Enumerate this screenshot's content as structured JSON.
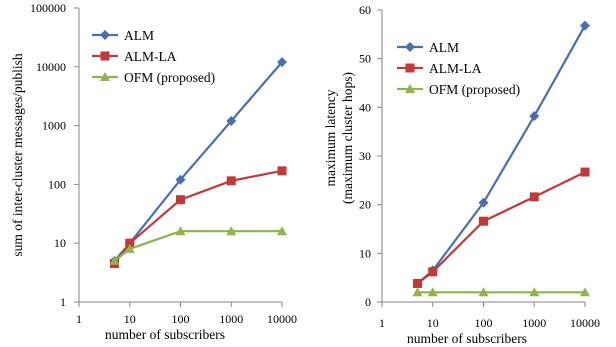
{
  "chart_data": [
    {
      "type": "line",
      "xlabel": "number of subscribers",
      "ylabel": "sum of inter-cluster messages/publish",
      "x_scale": "log",
      "y_scale": "log",
      "xlim": [
        1,
        10000
      ],
      "ylim": [
        1,
        100000
      ],
      "x_ticks": [
        "1",
        "10",
        "100",
        "1000",
        "10000"
      ],
      "y_ticks": [
        "1",
        "10",
        "100",
        "1000",
        "10000",
        "100000"
      ],
      "grid": false,
      "legend_position": "top-left",
      "series": [
        {
          "name": "ALM",
          "color": "#4a6fae",
          "marker": "diamond",
          "x": [
            5,
            10,
            100,
            1000,
            10000
          ],
          "y": [
            5,
            10,
            120,
            1200,
            12000
          ]
        },
        {
          "name": "ALM-LA",
          "color": "#c0393b",
          "marker": "square",
          "x": [
            5,
            10,
            100,
            1000,
            10000
          ],
          "y": [
            4.5,
            10,
            55,
            115,
            170
          ]
        },
        {
          "name": "OFM (proposed)",
          "color": "#8fb448",
          "marker": "triangle",
          "x": [
            5,
            10,
            100,
            1000,
            10000
          ],
          "y": [
            5,
            8,
            16,
            16,
            16
          ]
        }
      ]
    },
    {
      "type": "line",
      "xlabel": "number of subscribers",
      "ylabel": [
        "maximum  latency",
        "(maximum cluster hops)"
      ],
      "x_scale": "log",
      "y_scale": "linear",
      "xlim": [
        1,
        10000
      ],
      "ylim": [
        0,
        60
      ],
      "x_ticks": [
        "1",
        "10",
        "100",
        "1000",
        "10000"
      ],
      "y_ticks": [
        "0",
        "10",
        "20",
        "30",
        "40",
        "50",
        "60"
      ],
      "grid": false,
      "legend_position": "top-left",
      "series": [
        {
          "name": "ALM",
          "color": "#4a6fae",
          "marker": "diamond",
          "x": [
            5,
            10,
            100,
            1000,
            10000
          ],
          "y": [
            3.8,
            6.5,
            20.4,
            38.2,
            56.8
          ]
        },
        {
          "name": "ALM-LA",
          "color": "#c0393b",
          "marker": "square",
          "x": [
            5,
            10,
            100,
            1000,
            10000
          ],
          "y": [
            3.8,
            6.2,
            16.6,
            21.6,
            26.7
          ]
        },
        {
          "name": "OFM (proposed)",
          "color": "#8fb448",
          "marker": "triangle",
          "x": [
            5,
            10,
            100,
            1000,
            10000
          ],
          "y": [
            2,
            2,
            2,
            2,
            2
          ]
        }
      ]
    }
  ]
}
